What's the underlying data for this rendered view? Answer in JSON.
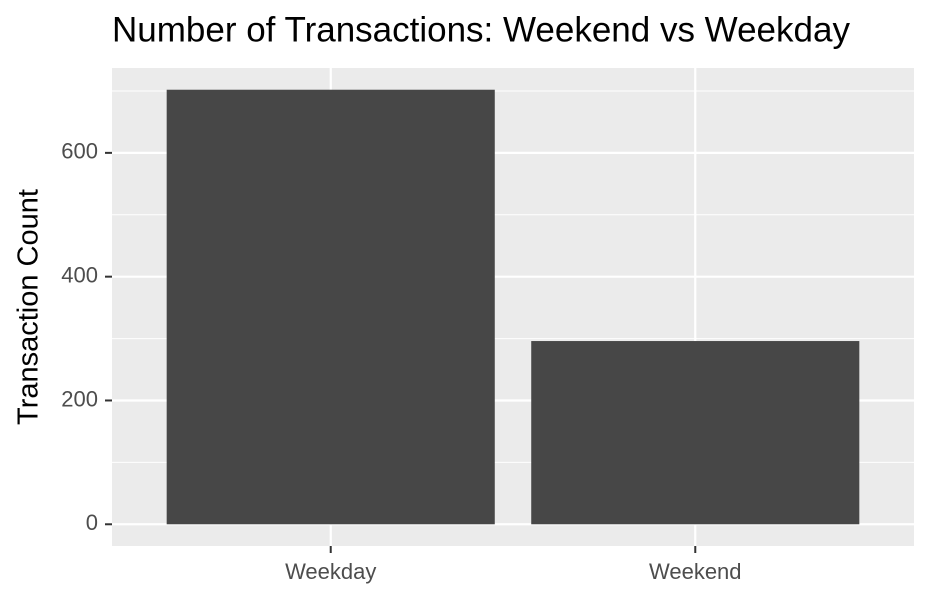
{
  "chart_data": {
    "type": "bar",
    "title": "Number of Transactions: Weekend vs Weekday",
    "y_label": "Transaction Count",
    "categories": [
      "Weekday",
      "Weekend"
    ],
    "values": [
      702,
      296
    ],
    "color": "#474747",
    "ylim": [
      -35.1,
      737.1
    ],
    "yticks": [
      0,
      200,
      400,
      600
    ],
    "y_minor_gridlines": [
      100,
      300,
      500,
      700
    ],
    "grid": true
  }
}
